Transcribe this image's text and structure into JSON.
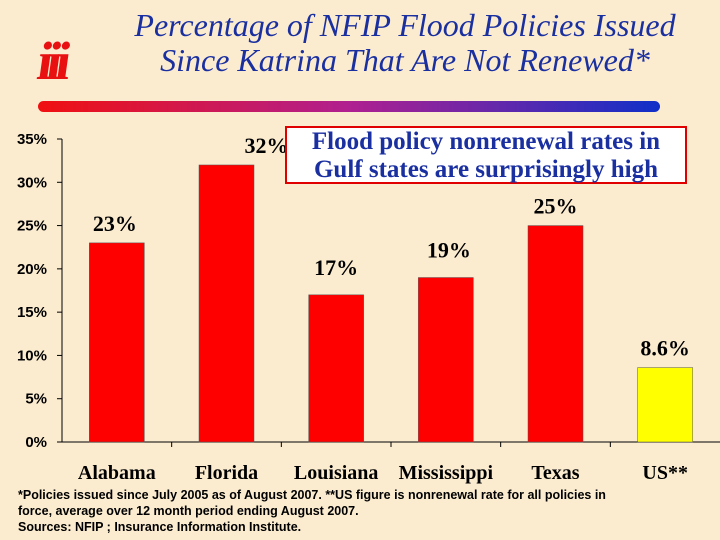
{
  "header": {
    "title_line1": "Percentage of NFIP Flood Policies Issued",
    "title_line2": "Since Katrina That Are Not Renewed*",
    "logo_text": "iii"
  },
  "callout": {
    "line1": "Flood policy nonrenewal rates in",
    "line2": "Gulf states are surprisingly high"
  },
  "footnote": {
    "line1": "*Policies issued since July 2005 as of August 2007.   **US figure is nonrenewal rate for all policies in",
    "line2": "force, average over 12 month period ending August 2007.",
    "line3": "Sources: NFIP ; Insurance Information Institute."
  },
  "chart_data": {
    "type": "bar",
    "categories": [
      "Alabama",
      "Florida",
      "Louisiana",
      "Mississippi",
      "Texas",
      "US**"
    ],
    "values": [
      23,
      32,
      17,
      19,
      25,
      8.6
    ],
    "data_labels": [
      "23%",
      "32%",
      "17%",
      "19%",
      "25%",
      "8.6%"
    ],
    "bar_colors": [
      "#ff0000",
      "#ff0000",
      "#ff0000",
      "#ff0000",
      "#ff0000",
      "#ffff00"
    ],
    "ylim": [
      0,
      35
    ],
    "yticks": [
      "0%",
      "5%",
      "10%",
      "15%",
      "20%",
      "25%",
      "30%",
      "35%"
    ],
    "grid": false,
    "xlabel": "",
    "ylabel": ""
  }
}
